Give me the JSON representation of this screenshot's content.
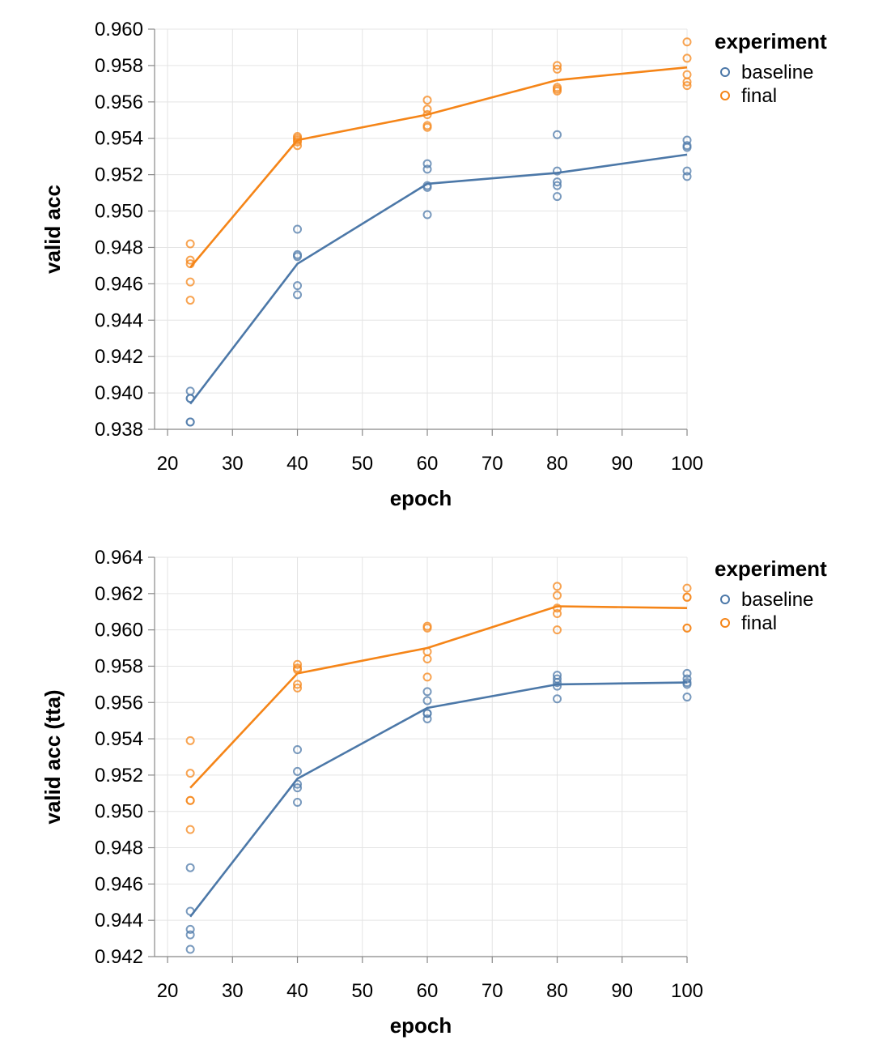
{
  "chart_data": [
    {
      "type": "line",
      "subtype": "line-with-scatter",
      "xlabel": "epoch",
      "ylabel": "valid acc",
      "xlim": [
        18,
        100
      ],
      "ylim": [
        0.938,
        0.96
      ],
      "xticks": [
        20,
        30,
        40,
        50,
        60,
        70,
        80,
        90,
        100
      ],
      "xtick_labels": [
        "20",
        "30",
        "40",
        "50",
        "60",
        "70",
        "80",
        "90",
        "100"
      ],
      "yticks": [
        0.938,
        0.94,
        0.942,
        0.944,
        0.946,
        0.948,
        0.95,
        0.952,
        0.954,
        0.956,
        0.958,
        0.96
      ],
      "ytick_labels": [
        "0.938",
        "0.940",
        "0.942",
        "0.944",
        "0.946",
        "0.948",
        "0.950",
        "0.952",
        "0.954",
        "0.956",
        "0.958",
        "0.960"
      ],
      "grid": true,
      "legend": {
        "title": "experiment",
        "position": "top-right"
      },
      "series": [
        {
          "name": "baseline",
          "color": "#4c78a8",
          "line": {
            "x": [
              23.5,
              40,
              60,
              80,
              100
            ],
            "y": [
              0.9394,
              0.9471,
              0.9515,
              0.9521,
              0.9531
            ]
          },
          "points": [
            {
              "x": 23.5,
              "y": [
                0.9401,
                0.9397,
                0.9397,
                0.9384,
                0.9384
              ]
            },
            {
              "x": 40,
              "y": [
                0.949,
                0.9476,
                0.9475,
                0.9459,
                0.9454
              ]
            },
            {
              "x": 60,
              "y": [
                0.9526,
                0.9523,
                0.9514,
                0.9513,
                0.9498
              ]
            },
            {
              "x": 80,
              "y": [
                0.9542,
                0.9522,
                0.9516,
                0.9514,
                0.9508
              ]
            },
            {
              "x": 100,
              "y": [
                0.9539,
                0.9536,
                0.9535,
                0.9522,
                0.9519
              ]
            }
          ]
        },
        {
          "name": "final",
          "color": "#f58518",
          "line": {
            "x": [
              23.5,
              40,
              60,
              80,
              100
            ],
            "y": [
              0.9469,
              0.9539,
              0.9553,
              0.9572,
              0.9579
            ]
          },
          "points": [
            {
              "x": 23.5,
              "y": [
                0.9482,
                0.9473,
                0.9471,
                0.9461,
                0.9451
              ]
            },
            {
              "x": 40,
              "y": [
                0.9541,
                0.954,
                0.9538,
                0.9539,
                0.9536
              ]
            },
            {
              "x": 60,
              "y": [
                0.9561,
                0.9556,
                0.9553,
                0.9547,
                0.9546
              ]
            },
            {
              "x": 80,
              "y": [
                0.958,
                0.9578,
                0.9568,
                0.9567,
                0.9566
              ]
            },
            {
              "x": 100,
              "y": [
                0.9593,
                0.9584,
                0.9575,
                0.9571,
                0.9569
              ]
            }
          ]
        }
      ]
    },
    {
      "type": "line",
      "subtype": "line-with-scatter",
      "xlabel": "epoch",
      "ylabel": "valid acc (tta)",
      "xlim": [
        18,
        100
      ],
      "ylim": [
        0.942,
        0.964
      ],
      "xticks": [
        20,
        30,
        40,
        50,
        60,
        70,
        80,
        90,
        100
      ],
      "xtick_labels": [
        "20",
        "30",
        "40",
        "50",
        "60",
        "70",
        "80",
        "90",
        "100"
      ],
      "yticks": [
        0.942,
        0.944,
        0.946,
        0.948,
        0.95,
        0.952,
        0.954,
        0.956,
        0.958,
        0.96,
        0.962,
        0.964
      ],
      "ytick_labels": [
        "0.942",
        "0.944",
        "0.946",
        "0.948",
        "0.950",
        "0.952",
        "0.954",
        "0.956",
        "0.958",
        "0.960",
        "0.962",
        "0.964"
      ],
      "grid": true,
      "legend": {
        "title": "experiment",
        "position": "top-right"
      },
      "series": [
        {
          "name": "baseline",
          "color": "#4c78a8",
          "line": {
            "x": [
              23.5,
              40,
              60,
              80,
              100
            ],
            "y": [
              0.9442,
              0.9518,
              0.9557,
              0.957,
              0.9571
            ]
          },
          "points": [
            {
              "x": 23.5,
              "y": [
                0.9469,
                0.9445,
                0.9435,
                0.9432,
                0.9424
              ]
            },
            {
              "x": 40,
              "y": [
                0.9534,
                0.9522,
                0.9515,
                0.9513,
                0.9505
              ]
            },
            {
              "x": 60,
              "y": [
                0.9566,
                0.9561,
                0.9554,
                0.9554,
                0.9551
              ]
            },
            {
              "x": 80,
              "y": [
                0.9575,
                0.9573,
                0.9571,
                0.9569,
                0.9562
              ]
            },
            {
              "x": 100,
              "y": [
                0.9576,
                0.9573,
                0.9571,
                0.957,
                0.9563
              ]
            }
          ]
        },
        {
          "name": "final",
          "color": "#f58518",
          "line": {
            "x": [
              23.5,
              40,
              60,
              80,
              100
            ],
            "y": [
              0.9513,
              0.9576,
              0.959,
              0.9613,
              0.9612
            ]
          },
          "points": [
            {
              "x": 23.5,
              "y": [
                0.9539,
                0.9521,
                0.9506,
                0.9506,
                0.949
              ]
            },
            {
              "x": 40,
              "y": [
                0.9581,
                0.9579,
                0.9578,
                0.957,
                0.9568
              ]
            },
            {
              "x": 60,
              "y": [
                0.9602,
                0.9601,
                0.9588,
                0.9584,
                0.9574
              ]
            },
            {
              "x": 80,
              "y": [
                0.9624,
                0.9619,
                0.9612,
                0.9609,
                0.96
              ]
            },
            {
              "x": 100,
              "y": [
                0.9623,
                0.9618,
                0.9618,
                0.9601,
                0.9601
              ]
            }
          ]
        }
      ]
    }
  ]
}
